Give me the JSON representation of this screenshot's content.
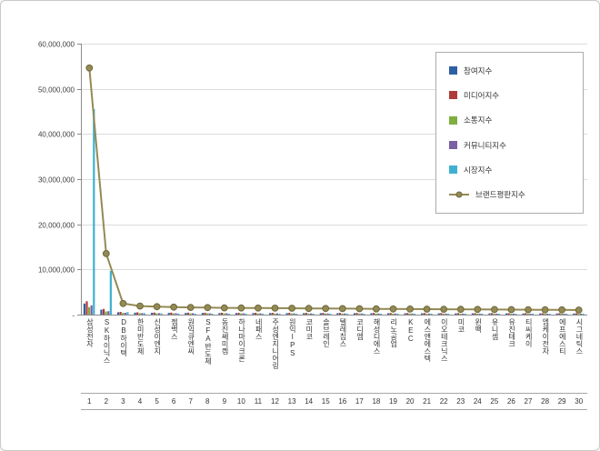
{
  "chart_data": {
    "type": "bar",
    "title": "",
    "xlabel": "",
    "ylabel": "",
    "ylim": [
      0,
      60000000
    ],
    "grid": true,
    "legend_position": "top-right",
    "y_tick_values": [
      0,
      10000000,
      20000000,
      30000000,
      40000000,
      50000000,
      60000000
    ],
    "y_tick_labels": [
      "-",
      "10,000,000",
      "20,000,000",
      "30,000,000",
      "40,000,000",
      "50,000,000",
      "60,000,000"
    ],
    "categories": [
      "삼성전자",
      "SK하이닉스",
      "DB하이텍",
      "한미반도체",
      "신성이엔지",
      "젬백스",
      "원익큐엔씨",
      "SFA반도체",
      "동진쎄미켐",
      "하나마이크론",
      "네패스",
      "주성엔지니어링",
      "원익IPS",
      "코미코",
      "솔브레인",
      "텔레칩스",
      "코디엠",
      "해성디에스",
      "리노공업",
      "KEC",
      "에스앤에스텍",
      "이오테크닉스",
      "미코",
      "윈팩",
      "유니셈",
      "유진테크",
      "티씨케이",
      "엠케이전자",
      "에프에스티",
      "시그네틱스"
    ],
    "rank_labels": [
      "1",
      "2",
      "3",
      "4",
      "5",
      "6",
      "7",
      "8",
      "9",
      "10",
      "11",
      "12",
      "13",
      "14",
      "15",
      "16",
      "17",
      "18",
      "19",
      "20",
      "21",
      "22",
      "23",
      "24",
      "25",
      "26",
      "27",
      "28",
      "29",
      "30"
    ],
    "bar_series": [
      {
        "name": "참여지수",
        "color": "#2E5FA3",
        "values": [
          2450000,
          1100000,
          520000,
          430000,
          400000,
          380000,
          370000,
          360000,
          350000,
          345000,
          340000,
          335000,
          330000,
          325000,
          320000,
          315000,
          310000,
          305000,
          300000,
          295000,
          290000,
          285000,
          280000,
          275000,
          270000,
          265000,
          260000,
          255000,
          250000,
          245000
        ]
      },
      {
        "name": "미디어지수",
        "color": "#AE3B39",
        "values": [
          2950000,
          1250000,
          600000,
          500000,
          460000,
          440000,
          430000,
          420000,
          410000,
          405000,
          400000,
          395000,
          390000,
          385000,
          380000,
          375000,
          370000,
          365000,
          360000,
          355000,
          350000,
          345000,
          340000,
          335000,
          330000,
          325000,
          320000,
          315000,
          310000,
          305000
        ]
      },
      {
        "name": "소통지수",
        "color": "#7FAF3E",
        "values": [
          1650000,
          700000,
          380000,
          320000,
          300000,
          290000,
          285000,
          280000,
          275000,
          270000,
          265000,
          260000,
          255000,
          250000,
          245000,
          240000,
          235000,
          230000,
          225000,
          220000,
          215000,
          210000,
          205000,
          200000,
          195000,
          190000,
          185000,
          180000,
          175000,
          170000
        ]
      },
      {
        "name": "커뮤니티지수",
        "color": "#7D5FA5",
        "values": [
          2050000,
          750000,
          400000,
          340000,
          320000,
          310000,
          305000,
          300000,
          295000,
          290000,
          285000,
          280000,
          275000,
          270000,
          265000,
          260000,
          255000,
          250000,
          245000,
          240000,
          235000,
          230000,
          225000,
          220000,
          215000,
          210000,
          205000,
          200000,
          195000,
          190000
        ]
      },
      {
        "name": "시장지수",
        "color": "#3FB1D0",
        "values": [
          45500000,
          9700000,
          550000,
          310000,
          270000,
          240000,
          210000,
          190000,
          170000,
          165000,
          160000,
          155000,
          150000,
          148000,
          140000,
          135000,
          130000,
          128000,
          125000,
          124000,
          123000,
          122000,
          121000,
          120000,
          118000,
          116000,
          112000,
          110000,
          108000,
          105000
        ]
      }
    ],
    "line_series": {
      "name": "브랜드평판지수",
      "color": "#938A54",
      "marker_color": "#6F683C",
      "values": [
        54600000,
        13500000,
        2450000,
        1900000,
        1750000,
        1660000,
        1600000,
        1550000,
        1500000,
        1475000,
        1450000,
        1425000,
        1400000,
        1378000,
        1350000,
        1325000,
        1300000,
        1278000,
        1255000,
        1234000,
        1213000,
        1192000,
        1171000,
        1150000,
        1128000,
        1106000,
        1082000,
        1060000,
        1038000,
        1015000
      ]
    }
  }
}
